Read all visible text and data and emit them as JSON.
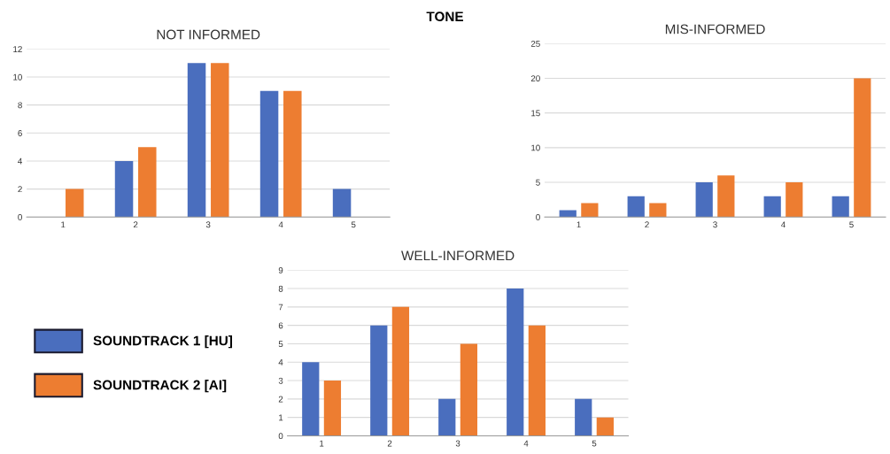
{
  "chart_data": [
    {
      "type": "bar",
      "title": "NOT INFORMED",
      "annotations": [
        "TONE"
      ],
      "categories": [
        "1",
        "2",
        "3",
        "4",
        "5"
      ],
      "series": [
        {
          "name": "SOUNDTRACK 1 [HU]",
          "color": "#4a6ebe",
          "values": [
            0,
            4,
            11,
            9,
            2
          ]
        },
        {
          "name": "SOUNDTRACK 2 [AI]",
          "color": "#ed7d31",
          "values": [
            2,
            5,
            11,
            9,
            0
          ]
        }
      ],
      "ylim": [
        0,
        12
      ],
      "yticks": [
        0,
        2,
        4,
        6,
        8,
        10,
        12
      ],
      "grid": "y",
      "legend": "bottom left"
    },
    {
      "type": "bar",
      "title": "MIS-INFORMED",
      "categories": [
        "1",
        "2",
        "3",
        "4",
        "5"
      ],
      "series": [
        {
          "color": "#4a6ebe",
          "values": [
            1,
            3,
            5,
            3,
            3
          ]
        },
        {
          "color": "#ed7d31",
          "values": [
            2,
            2,
            6,
            5,
            20
          ]
        }
      ],
      "ylim": [
        0,
        25
      ],
      "yticks": [
        0,
        5,
        10,
        15,
        20,
        25
      ],
      "grid": "y"
    },
    {
      "type": "bar",
      "title": "WELL-INFORMED",
      "categories": [
        "1",
        "2",
        "3",
        "4",
        "5"
      ],
      "series": [
        {
          "color": "#4a6ebe",
          "values": [
            4,
            6,
            2,
            8,
            2
          ]
        },
        {
          "color": "#ed7d31",
          "values": [
            3,
            7,
            5,
            6,
            1
          ]
        }
      ],
      "ylim": [
        0,
        9
      ],
      "yticks": [
        0,
        1,
        2,
        3,
        4,
        5,
        6,
        7,
        8,
        9
      ],
      "grid": "y"
    }
  ]
}
